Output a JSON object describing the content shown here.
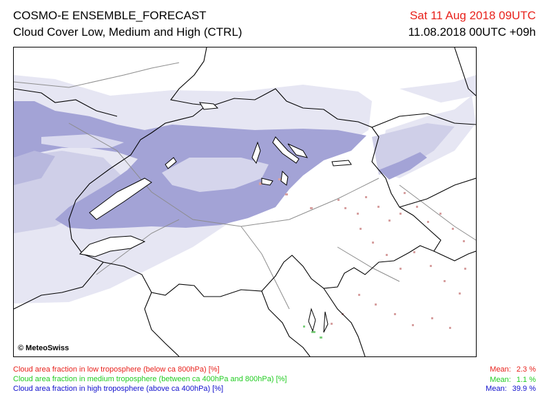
{
  "header": {
    "product": "COSMO-E ENSEMBLE_FORECAST",
    "field": "Cloud Cover Low, Medium and High (CTRL)",
    "valid_time": "Sat 11 Aug 2018 09UTC",
    "run_time": "11.08.2018 00UTC +09h"
  },
  "map": {
    "copyright": "© MeteoSwiss",
    "colors": {
      "high": "#a3a3d6",
      "high_light": "#e4e4f2",
      "low": "#d7a0a0",
      "medium": "#7fd07f",
      "border": "#000000",
      "river": "#8c8c8c"
    }
  },
  "legend": [
    {
      "label": "Cloud area fraction in low troposphere (below ca 800hPa) [%]",
      "mean_label": "Mean:",
      "mean_value": "2.3 %",
      "color": "#e8221c"
    },
    {
      "label": "Cloud area fraction in medium troposphere (between ca 400hPa and 800hPa) [%]",
      "mean_label": "Mean:",
      "mean_value": "1.1 %",
      "color": "#22cc22"
    },
    {
      "label": "Cloud area fraction in high troposphere (above ca 400hPa) [%]",
      "mean_label": "Mean:",
      "mean_value": "39.9 %",
      "color": "#1010cc"
    }
  ]
}
